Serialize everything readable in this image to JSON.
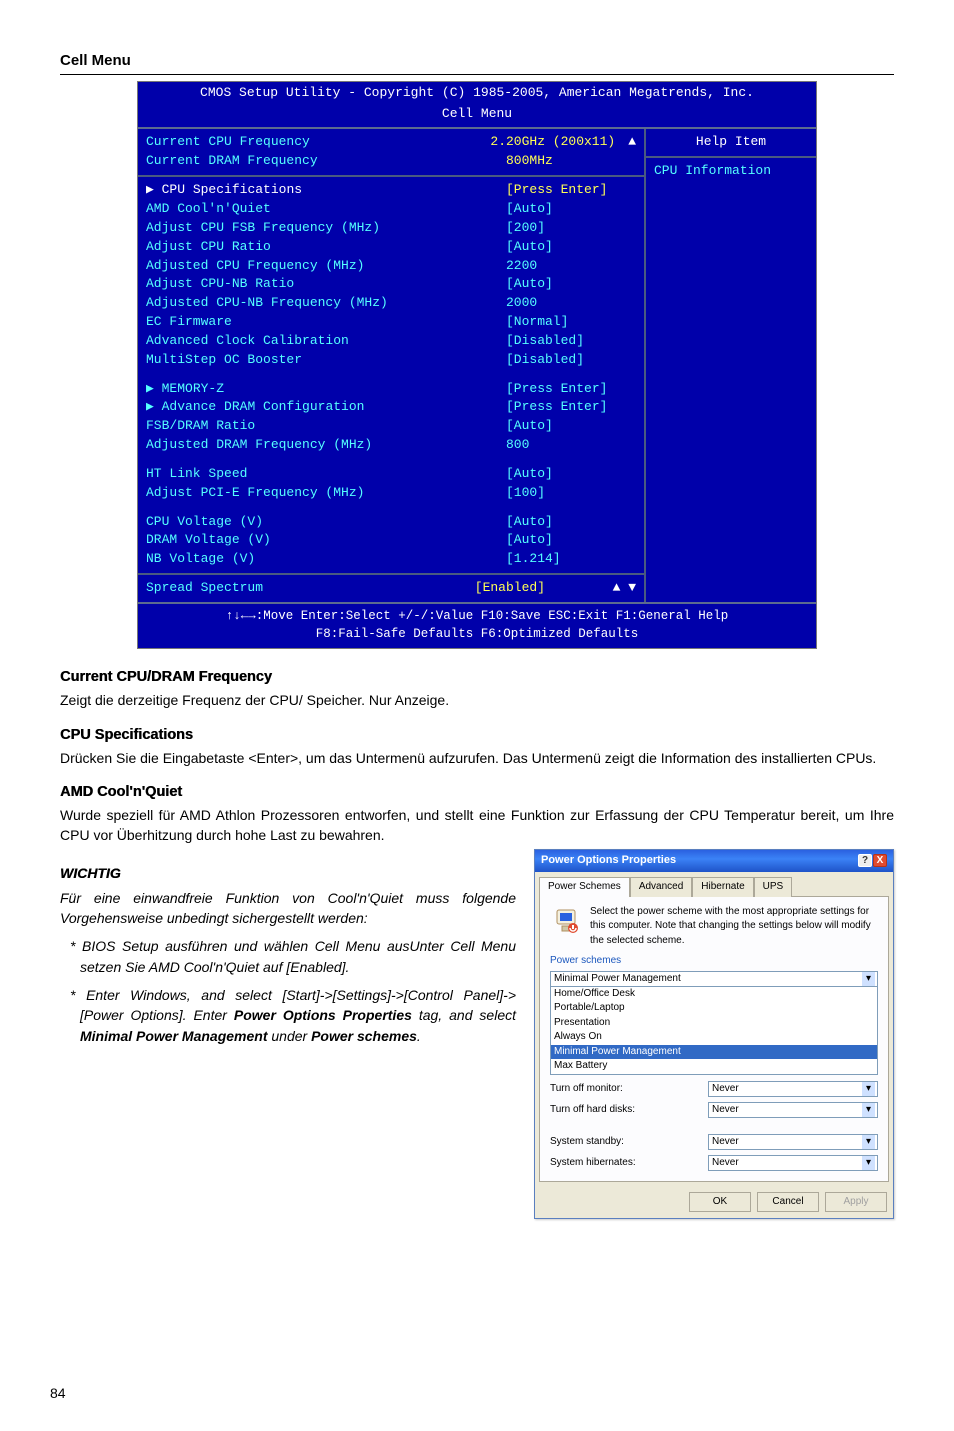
{
  "page_number": "84",
  "section_title": "Cell Menu",
  "bios": {
    "header": "CMOS Setup Utility - Copyright (C) 1985-2005, American Megatrends, Inc.",
    "title": "Cell Menu",
    "help_title": "Help Item",
    "help_sub": "CPU Information",
    "top_rows": [
      {
        "label": "Current CPU Frequency",
        "value": "2.20GHz (200x11)",
        "lcol": "cy",
        "vcol": "ye"
      },
      {
        "label": "Current DRAM Frequency",
        "value": "800MHz",
        "lcol": "cy",
        "vcol": "ye"
      }
    ],
    "rows_a": [
      {
        "label": "▶ CPU Specifications",
        "value": "[Press Enter]",
        "lcol": "wh",
        "vcol": "ye"
      },
      {
        "label": "AMD Cool'n'Quiet",
        "value": "[Auto]",
        "lcol": "cy",
        "vcol": "cy"
      },
      {
        "label": "Adjust CPU FSB Frequency (MHz)",
        "value": "[200]",
        "lcol": "cy",
        "vcol": "cy"
      },
      {
        "label": "Adjust CPU Ratio",
        "value": "[Auto]",
        "lcol": "cy",
        "vcol": "cy"
      },
      {
        "label": "Adjusted CPU Frequency (MHz)",
        "value": "2200",
        "lcol": "cy",
        "vcol": "cy"
      },
      {
        "label": "Adjust CPU-NB Ratio",
        "value": "[Auto]",
        "lcol": "cy",
        "vcol": "cy"
      },
      {
        "label": "Adjusted CPU-NB Frequency (MHz)",
        "value": "2000",
        "lcol": "cy",
        "vcol": "cy"
      },
      {
        "label": "EC Firmware",
        "value": "[Normal]",
        "lcol": "cy",
        "vcol": "cy"
      },
      {
        "label": "Advanced Clock Calibration",
        "value": "[Disabled]",
        "lcol": "cy",
        "vcol": "cy"
      },
      {
        "label": "MultiStep OC Booster",
        "value": "[Disabled]",
        "lcol": "cy",
        "vcol": "cy"
      }
    ],
    "rows_b": [
      {
        "label": "▶ MEMORY-Z",
        "value": "[Press Enter]",
        "lcol": "cy",
        "vcol": "cy"
      },
      {
        "label": "▶ Advance DRAM Configuration",
        "value": "[Press Enter]",
        "lcol": "cy",
        "vcol": "cy"
      },
      {
        "label": "FSB/DRAM Ratio",
        "value": "[Auto]",
        "lcol": "cy",
        "vcol": "cy"
      },
      {
        "label": "Adjusted DRAM Frequency (MHz)",
        "value": "800",
        "lcol": "cy",
        "vcol": "cy"
      }
    ],
    "rows_c": [
      {
        "label": "HT Link Speed",
        "value": "[Auto]",
        "lcol": "cy",
        "vcol": "cy"
      },
      {
        "label": "Adjust PCI-E Frequency (MHz)",
        "value": "[100]",
        "lcol": "cy",
        "vcol": "cy"
      }
    ],
    "rows_d": [
      {
        "label": "CPU Voltage (V)",
        "value": "[Auto]",
        "lcol": "cy",
        "vcol": "cy"
      },
      {
        "label": "DRAM Voltage (V)",
        "value": "[Auto]",
        "lcol": "cy",
        "vcol": "cy"
      },
      {
        "label": "NB Voltage (V)",
        "value": "[1.214]",
        "lcol": "cy",
        "vcol": "cy"
      }
    ],
    "rows_e": [
      {
        "label": "Spread Spectrum",
        "value": "[Enabled]",
        "lcol": "cy",
        "vcol": "ye"
      }
    ],
    "foot1": "↑↓←→:Move  Enter:Select  +/-/:Value  F10:Save  ESC:Exit  F1:General Help",
    "foot2": "F8:Fail-Safe Defaults     F6:Optimized Defaults"
  },
  "paras": {
    "h1": "Current CPU/DRAM Frequency",
    "p1": "Zeigt die derzeitige Frequenz der CPU/ Speicher. Nur Anzeige.",
    "h2": "CPU Specifications",
    "p2": "Drücken Sie die Eingabetaste <Enter>, um das Untermenü aufzurufen. Das Untermenü zeigt die Information des installierten CPUs.",
    "h3": "AMD Cool'n'Quiet",
    "p3": "Wurde speziell für AMD Athlon Prozessoren entworfen, und stellt eine Funktion zur Erfassung der CPU Temperatur bereit, um Ihre CPU vor Überhitzung durch hohe Last zu bewahren.",
    "wichtig": "WICHTIG",
    "p4": "Für eine einwandfreie Funktion von Cool'n'Quiet muss folgende Vorgehensweise unbedingt sichergestellt werden:",
    "li1": "BIOS Setup ausführen und wählen Cell Menu ausUnter Cell Menu setzen Sie AMD Cool'n'Quiet auf [Enabled].",
    "li2a": "Enter Windows, and select [Start]->[Settings]->[Control Panel]->[Power Options]. Enter ",
    "li2b": "Power Options Properties",
    "li2c": " tag, and select ",
    "li2d": "Minimal Power Management",
    "li2e": " under ",
    "li2f": "Power schemes",
    "li2g": "."
  },
  "win": {
    "title": "Power Options Properties",
    "tabs": [
      "Power Schemes",
      "Advanced",
      "Hibernate",
      "UPS"
    ],
    "active_tab": 0,
    "desc": "Select the power scheme with the most appropriate settings for this computer. Note that changing the settings below will modify the selected scheme.",
    "group_label": "Power schemes",
    "selected": "Minimal Power Management",
    "options": [
      "Home/Office Desk",
      "Portable/Laptop",
      "Presentation",
      "Always On",
      "Minimal Power Management",
      "Max Battery"
    ],
    "rows": [
      {
        "label": "Turn off monitor:",
        "value": "Never"
      },
      {
        "label": "Turn off hard disks:",
        "value": "Never"
      },
      {
        "label": "System standby:",
        "value": "Never"
      },
      {
        "label": "System hibernates:",
        "value": "Never"
      }
    ],
    "buttons": {
      "ok": "OK",
      "cancel": "Cancel",
      "apply": "Apply"
    }
  }
}
